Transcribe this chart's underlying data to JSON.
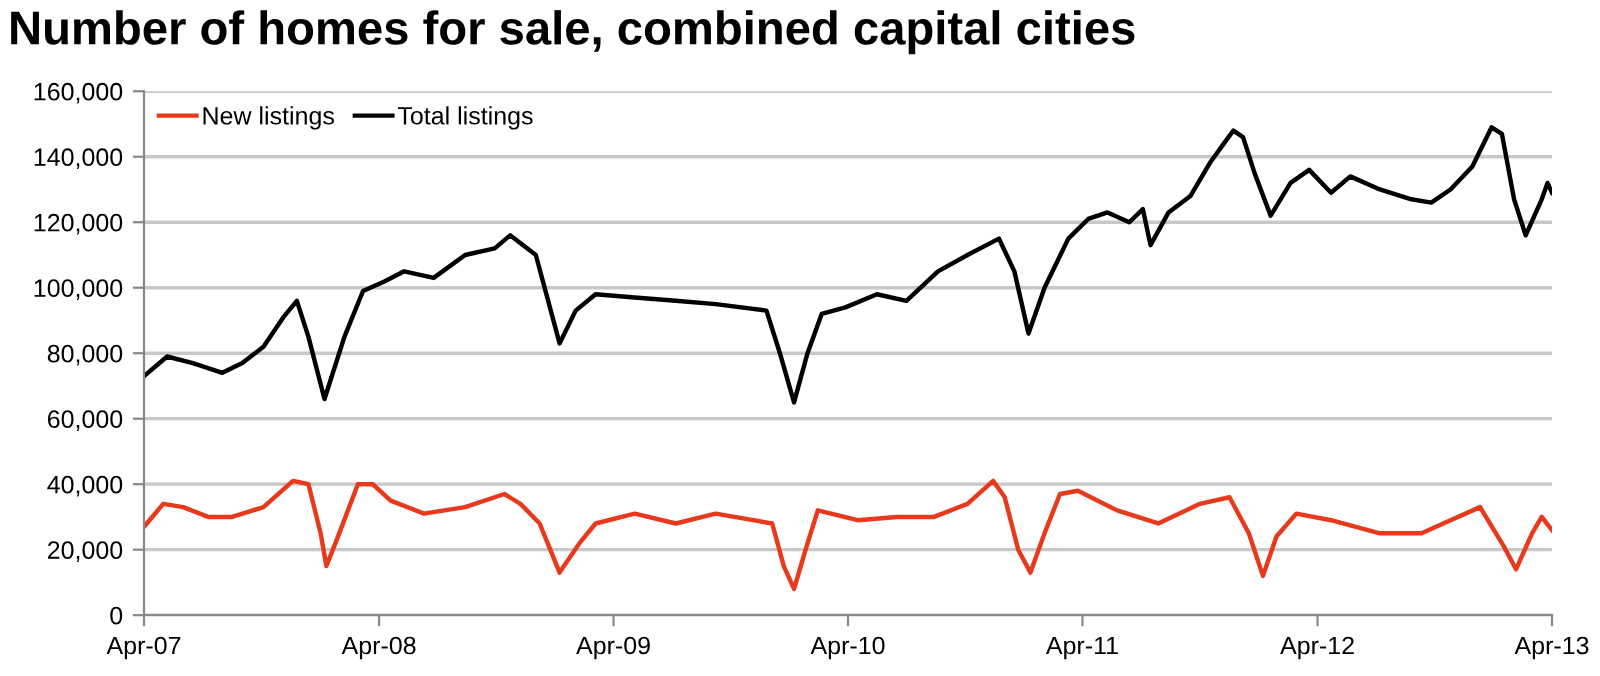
{
  "chart_data": {
    "type": "line",
    "title": "Number of homes for sale, combined capital cities",
    "xlim": [
      "2007-04-01",
      "2013-04-01"
    ],
    "xticks": [
      {
        "value": "2007-04-01",
        "label": "Apr-07"
      },
      {
        "value": "2008-04-01",
        "label": "Apr-08"
      },
      {
        "value": "2009-04-01",
        "label": "Apr-09"
      },
      {
        "value": "2010-04-01",
        "label": "Apr-10"
      },
      {
        "value": "2011-04-01",
        "label": "Apr-11"
      },
      {
        "value": "2012-04-01",
        "label": "Apr-12"
      },
      {
        "value": "2013-04-01",
        "label": "Apr-13"
      }
    ],
    "ylim": [
      0,
      160000
    ],
    "yticks": [
      {
        "value": 0,
        "label": "0"
      },
      {
        "value": 20000,
        "label": "20,000"
      },
      {
        "value": 40000,
        "label": "40,000"
      },
      {
        "value": 60000,
        "label": "60,000"
      },
      {
        "value": 80000,
        "label": "80,000"
      },
      {
        "value": 100000,
        "label": "100,000"
      },
      {
        "value": 120000,
        "label": "120,000"
      },
      {
        "value": 140000,
        "label": "140,000"
      },
      {
        "value": 160000,
        "label": "160,000"
      }
    ],
    "grid": "y",
    "legend": "top left",
    "marker": "none",
    "line_style": "solid",
    "series": [
      {
        "name": "New listings",
        "color": "#e8391d",
        "x": [
          "2007-04-01",
          "2007-05-01",
          "2007-06-01",
          "2007-07-10",
          "2007-08-16",
          "2007-10-04",
          "2007-11-19",
          "2007-12-13",
          "2008-01-01",
          "2008-01-10",
          "2008-01-28",
          "2008-02-28",
          "2008-03-22",
          "2008-04-19",
          "2008-06-10",
          "2008-08-13",
          "2008-10-13",
          "2008-11-07",
          "2008-12-07",
          "2009-01-07",
          "2009-02-07",
          "2009-03-04",
          "2009-05-04",
          "2009-07-07",
          "2009-09-07",
          "2009-12-04",
          "2009-12-22",
          "2010-01-07",
          "2010-01-25",
          "2010-02-13",
          "2010-04-16",
          "2010-06-16",
          "2010-08-13",
          "2010-10-04",
          "2010-11-13",
          "2010-12-01",
          "2010-12-22",
          "2011-01-10",
          "2011-02-01",
          "2011-02-25",
          "2011-03-25",
          "2011-05-25",
          "2011-07-28",
          "2011-10-01",
          "2011-11-16",
          "2011-12-16",
          "2012-01-07",
          "2012-01-28",
          "2012-02-28",
          "2012-04-22",
          "2012-07-07",
          "2012-09-10",
          "2012-10-25",
          "2012-12-10",
          "2013-01-16",
          "2013-02-04",
          "2013-03-01",
          "2013-03-16",
          "2013-04-01"
        ],
        "values": [
          27000,
          34000,
          33000,
          30000,
          30000,
          33000,
          41000,
          40000,
          25000,
          15000,
          24000,
          40000,
          40000,
          35000,
          31000,
          33000,
          37000,
          34000,
          28000,
          13000,
          22000,
          28000,
          31000,
          28000,
          31000,
          28000,
          15000,
          8000,
          20000,
          32000,
          29000,
          30000,
          30000,
          34000,
          41000,
          36000,
          20000,
          13000,
          25000,
          37000,
          38000,
          32000,
          28000,
          34000,
          36000,
          25000,
          12000,
          24000,
          31000,
          29000,
          25000,
          25000,
          29000,
          33000,
          21000,
          14000,
          25000,
          30000,
          26000
        ]
      },
      {
        "name": "Total listings",
        "color": "#000000",
        "x": [
          "2007-04-01",
          "2007-05-07",
          "2007-06-16",
          "2007-08-01",
          "2007-09-01",
          "2007-10-04",
          "2007-11-04",
          "2007-11-25",
          "2007-12-13",
          "2008-01-07",
          "2008-02-07",
          "2008-03-07",
          "2008-04-10",
          "2008-05-10",
          "2008-06-25",
          "2008-08-13",
          "2008-09-28",
          "2008-10-22",
          "2008-12-01",
          "2009-01-07",
          "2009-02-01",
          "2009-03-04",
          "2009-05-04",
          "2009-07-07",
          "2009-09-07",
          "2009-11-25",
          "2009-12-16",
          "2010-01-07",
          "2010-01-28",
          "2010-02-19",
          "2010-03-28",
          "2010-05-16",
          "2010-07-01",
          "2010-08-19",
          "2010-10-04",
          "2010-11-22",
          "2010-12-16",
          "2011-01-07",
          "2011-02-01",
          "2011-03-10",
          "2011-04-10",
          "2011-05-10",
          "2011-06-13",
          "2011-07-04",
          "2011-07-16",
          "2011-08-13",
          "2011-09-16",
          "2011-10-16",
          "2011-11-07",
          "2011-11-22",
          "2011-12-07",
          "2011-12-25",
          "2012-01-19",
          "2012-02-19",
          "2012-03-19",
          "2012-04-22",
          "2012-05-22",
          "2012-07-07",
          "2012-08-25",
          "2012-09-25",
          "2012-10-25",
          "2012-11-28",
          "2012-12-28",
          "2013-01-13",
          "2013-02-01",
          "2013-02-19",
          "2013-03-16",
          "2013-03-25",
          "2013-04-01"
        ],
        "values": [
          73000,
          79000,
          77000,
          74000,
          77000,
          82000,
          91000,
          96000,
          85000,
          66000,
          85000,
          99000,
          102000,
          105000,
          103000,
          110000,
          112000,
          116000,
          110000,
          83000,
          93000,
          98000,
          97000,
          96000,
          95000,
          93000,
          80000,
          65000,
          80000,
          92000,
          94000,
          98000,
          96000,
          105000,
          110000,
          115000,
          105000,
          86000,
          100000,
          115000,
          121000,
          123000,
          120000,
          124000,
          113000,
          123000,
          128000,
          138000,
          144000,
          148000,
          146000,
          135000,
          122000,
          132000,
          136000,
          129000,
          134000,
          130000,
          127000,
          126000,
          130000,
          137000,
          149000,
          147000,
          127000,
          116000,
          127000,
          132000,
          129000
        ]
      }
    ]
  }
}
